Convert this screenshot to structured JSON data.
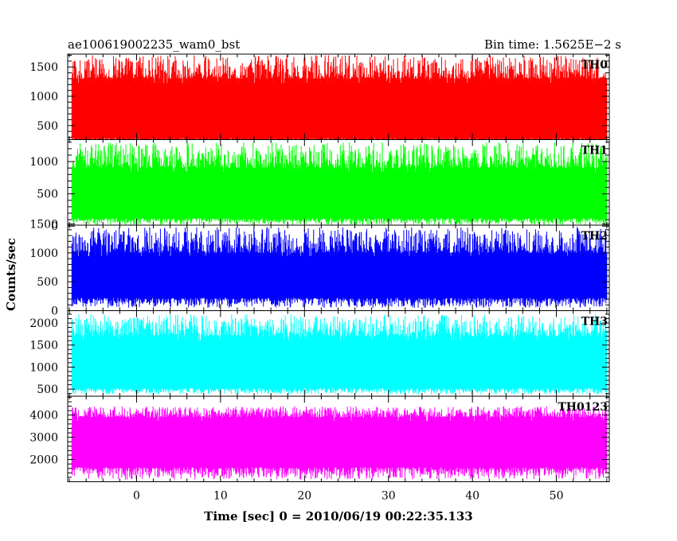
{
  "header": {
    "left_title": "ae100619002235_wam0_bst",
    "right_title": "Bin time: 1.5625E−2 s"
  },
  "axes": {
    "xlabel": "Time [sec] 0 = 2010/06/19 00:22:35.133",
    "ylabel": "Counts/sec"
  },
  "chart_data": {
    "type": "line",
    "subtype": "stacked light-curve panels with shared x-axis",
    "xlim": [
      -8.2,
      56.3
    ],
    "data_x_range": [
      -7.7,
      56.0
    ],
    "bin_time_s": 0.015625,
    "x_ticks": [
      0,
      10,
      20,
      30,
      40,
      50
    ],
    "x_minor_tick_step": 2,
    "grid": false,
    "panels": [
      {
        "name": "TH0",
        "color": "#ff0000",
        "ylim": [
          260,
          1720
        ],
        "y_ticks": [
          500,
          1000,
          1500
        ],
        "y_minor_tick_step": 100,
        "band_low": 280,
        "band_high": 1300,
        "peak": 1700,
        "typical_min": 150
      },
      {
        "name": "TH1",
        "color": "#00ff00",
        "ylim": [
          15,
          1340
        ],
        "y_ticks": [
          0,
          500,
          1000
        ],
        "y_minor_tick_step": 100,
        "band_low": 120,
        "band_high": 900,
        "peak": 1300,
        "typical_min": 20
      },
      {
        "name": "TH2",
        "color": "#0000ff",
        "ylim": [
          0,
          1480
        ],
        "y_ticks": [
          0,
          500,
          1000,
          1500
        ],
        "y_minor_tick_step": 100,
        "band_low": 220,
        "band_high": 1000,
        "peak": 1450,
        "typical_min": 50
      },
      {
        "name": "TH3",
        "color": "#00ffff",
        "ylim": [
          340,
          2280
        ],
        "y_ticks": [
          500,
          1000,
          1500,
          2000
        ],
        "y_minor_tick_step": 100,
        "band_low": 520,
        "band_high": 1700,
        "peak": 2200,
        "typical_min": 380
      },
      {
        "name": "TH0123",
        "color": "#ff00ff",
        "ylim": [
          1000,
          4850
        ],
        "y_ticks": [
          2000,
          3000,
          4000
        ],
        "y_minor_tick_step": 200,
        "band_low": 1650,
        "band_high": 3900,
        "peak": 4400,
        "typical_min": 1100
      }
    ]
  }
}
